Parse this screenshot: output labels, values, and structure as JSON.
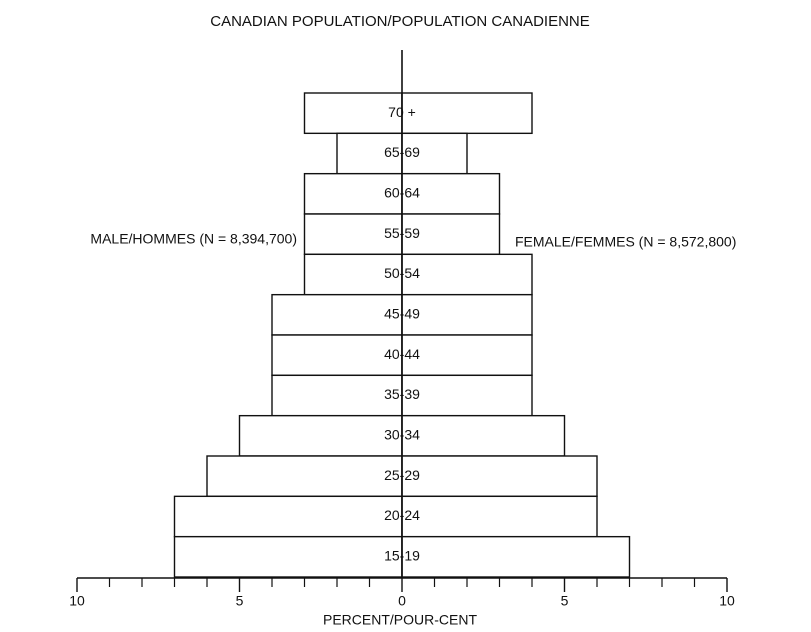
{
  "chart_data": {
    "type": "pyramid",
    "title": "CANADIAN POPULATION/POPULATION CANADIENNE",
    "x_label": "PERCENT/POUR-CENT",
    "categories": [
      "70 +",
      "65-69",
      "60-64",
      "55-59",
      "50-54",
      "45-49",
      "40-44",
      "35-39",
      "30-34",
      "25-29",
      "20-24",
      "15-19"
    ],
    "series": [
      {
        "name": "MALE/HOMMES (N = 8,394,700)",
        "side": "left",
        "color": "#ffffff",
        "values": [
          3,
          2,
          3,
          3,
          3,
          4,
          4,
          4,
          5,
          6,
          7,
          7
        ]
      },
      {
        "name": "FEMALE/FEMMES (N = 8,572,800)",
        "side": "right",
        "color": "#ffffff",
        "values": [
          4,
          2,
          3,
          3,
          4,
          4,
          4,
          4,
          5,
          6,
          6,
          7
        ]
      }
    ],
    "xlim": [
      -10,
      10
    ],
    "xticks": [
      {
        "value": -10,
        "label": "10"
      },
      {
        "value": -5,
        "label": "5"
      },
      0,
      5,
      10
    ],
    "xminor_ticks": [
      -9,
      -8,
      -7,
      -6,
      -4,
      -3,
      -2,
      -1,
      1,
      2,
      3,
      4,
      6,
      7,
      8,
      9
    ]
  }
}
